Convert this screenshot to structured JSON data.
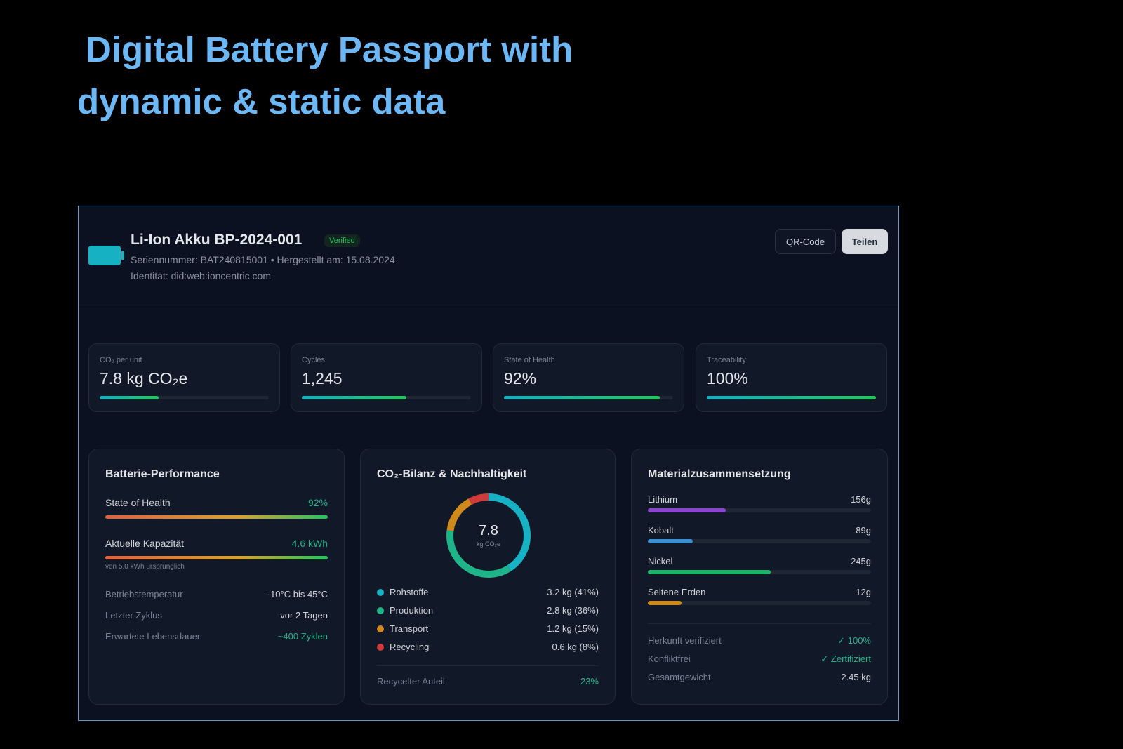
{
  "headline": {
    "line1": "Digital Battery Passport with",
    "line2": "dynamic & static data"
  },
  "header": {
    "title": "Li-Ion Akku BP-2024-001",
    "badge": "Verified",
    "serial": "Seriennummer: BAT240815001 • Hergestellt am: 15.08.2024",
    "identity": "Identität: did:web:ioncentric.com",
    "qr_label": "QR-Code",
    "share_label": "Teilen"
  },
  "kpis": [
    {
      "label": "CO₂ per unit",
      "value": "7.8 kg CO₂e",
      "progress": 35
    },
    {
      "label": "Cycles",
      "value": "1,245",
      "progress": 62
    },
    {
      "label": "State of Health",
      "value": "92%",
      "progress": 92
    },
    {
      "label": "Traceability",
      "value": "100%",
      "progress": 100
    }
  ],
  "performance": {
    "title": "Batterie-Performance",
    "soh_label": "State of Health",
    "soh_value": "92%",
    "soh_progress": 92,
    "cap_label": "Aktuelle Kapazität",
    "cap_value": "4.6 kWh",
    "cap_progress": 92,
    "cap_note": "von 5.0 kWh ursprünglich",
    "rows": [
      {
        "label": "Betriebstemperatur",
        "value": "-10°C bis 45°C"
      },
      {
        "label": "Letzter Zyklus",
        "value": "vor 2 Tagen"
      },
      {
        "label": "Erwartete Lebensdauer",
        "value": "~400 Zyklen"
      }
    ]
  },
  "co2": {
    "title": "CO₂-Bilanz & Nachhaltigkeit",
    "total": "7.8",
    "unit": "kg CO₂e",
    "segments": [
      {
        "label": "Rohstoffe",
        "value": "3.2 kg (41%)",
        "pct": 41,
        "color": "#17b1c4"
      },
      {
        "label": "Produktion",
        "value": "2.8 kg (36%)",
        "pct": 36,
        "color": "#1fb38a"
      },
      {
        "label": "Transport",
        "value": "1.2 kg (15%)",
        "pct": 15,
        "color": "#d08a1c"
      },
      {
        "label": "Recycling",
        "value": "0.6 kg (8%)",
        "pct": 8,
        "color": "#cf3a3a"
      }
    ],
    "recycled_label": "Recycelter Anteil",
    "recycled_value": "23%"
  },
  "materials": {
    "title": "Materialzusammensetzung",
    "items": [
      {
        "label": "Lithium",
        "value": "156g",
        "pct": 35,
        "color": "#8b45d0"
      },
      {
        "label": "Kobalt",
        "value": "89g",
        "pct": 20,
        "color": "#3b8ed0"
      },
      {
        "label": "Nickel",
        "value": "245g",
        "pct": 55,
        "color": "#1fb36a"
      },
      {
        "label": "Seltene Erden",
        "value": "12g",
        "pct": 15,
        "color": "#d08a1c"
      }
    ],
    "rows": [
      {
        "label": "Herkunft verifiziert",
        "value": "✓ 100%"
      },
      {
        "label": "Konfliktfrei",
        "value": "✓ Zertifiziert"
      },
      {
        "label": "Gesamtgewicht",
        "value": "2.45 kg"
      }
    ]
  }
}
